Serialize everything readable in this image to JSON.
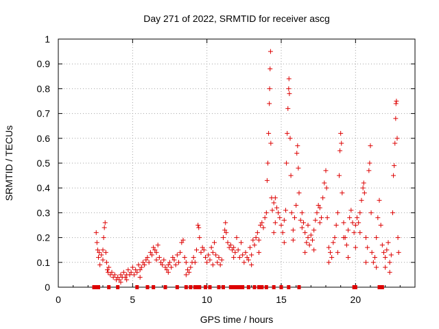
{
  "chart_data": {
    "type": "scatter",
    "title": "Day 271 of 2022, SRMTID for receiver ascg",
    "xlabel": "GPS time / hours",
    "ylabel": "SRMTID / TECUs",
    "xlim": [
      0,
      24
    ],
    "ylim": [
      0,
      1
    ],
    "xticks": [
      0,
      5,
      10,
      15,
      20
    ],
    "xtick_labels": [
      "0",
      "5",
      "10",
      "15",
      "20"
    ],
    "yticks": [
      0,
      0.1,
      0.2,
      0.3,
      0.4,
      0.5,
      0.6,
      0.7,
      0.8,
      0.9,
      1
    ],
    "ytick_labels": [
      "0",
      "0.1",
      "0.2",
      "0.3",
      "0.4",
      "0.5",
      "0.6",
      "0.7",
      "0.8",
      "0.9",
      "1"
    ],
    "grid": true,
    "marker": "+",
    "series_color": "#dd0000",
    "series": [
      {
        "name": "SRMTID",
        "points": [
          [
            2.55,
            0.22
          ],
          [
            2.6,
            0.18
          ],
          [
            2.65,
            0.15
          ],
          [
            2.7,
            0.12
          ],
          [
            2.75,
            0.14
          ],
          [
            2.8,
            0.09
          ],
          [
            2.9,
            0.13
          ],
          [
            3.0,
            0.15
          ],
          [
            3.05,
            0.2
          ],
          [
            3.1,
            0.24
          ],
          [
            3.15,
            0.26
          ],
          [
            3.2,
            0.14
          ],
          [
            3.25,
            0.1
          ],
          [
            3.3,
            0.07
          ],
          [
            3.35,
            0.06
          ],
          [
            3.4,
            0.08
          ],
          [
            3.5,
            0.05
          ],
          [
            3.6,
            0.06
          ],
          [
            3.7,
            0.04
          ],
          [
            3.8,
            0.05
          ],
          [
            3.9,
            0.03
          ],
          [
            4.0,
            0.04
          ],
          [
            4.1,
            0.03
          ],
          [
            4.2,
            0.05
          ],
          [
            4.3,
            0.04
          ],
          [
            4.4,
            0.06
          ],
          [
            4.5,
            0.04
          ],
          [
            4.6,
            0.05
          ],
          [
            4.7,
            0.07
          ],
          [
            4.8,
            0.05
          ],
          [
            4.9,
            0.06
          ],
          [
            5.0,
            0.08
          ],
          [
            5.1,
            0.05
          ],
          [
            5.2,
            0.07
          ],
          [
            5.3,
            0.06
          ],
          [
            5.4,
            0.09
          ],
          [
            5.5,
            0.07
          ],
          [
            5.6,
            0.08
          ],
          [
            5.7,
            0.1
          ],
          [
            5.8,
            0.09
          ],
          [
            5.9,
            0.11
          ],
          [
            6.0,
            0.12
          ],
          [
            6.1,
            0.1
          ],
          [
            6.2,
            0.14
          ],
          [
            6.3,
            0.13
          ],
          [
            6.4,
            0.16
          ],
          [
            6.5,
            0.15
          ],
          [
            6.6,
            0.14
          ],
          [
            6.7,
            0.17
          ],
          [
            6.8,
            0.12
          ],
          [
            6.9,
            0.1
          ],
          [
            7.0,
            0.09
          ],
          [
            7.1,
            0.11
          ],
          [
            7.2,
            0.08
          ],
          [
            7.3,
            0.07
          ],
          [
            7.4,
            0.09
          ],
          [
            7.5,
            0.1
          ],
          [
            7.6,
            0.08
          ],
          [
            7.7,
            0.12
          ],
          [
            7.8,
            0.11
          ],
          [
            7.9,
            0.09
          ],
          [
            8.0,
            0.13
          ],
          [
            8.1,
            0.1
          ],
          [
            8.2,
            0.14
          ],
          [
            8.3,
            0.18
          ],
          [
            8.4,
            0.19
          ],
          [
            8.5,
            0.12
          ],
          [
            8.6,
            0.1
          ],
          [
            8.7,
            0.07
          ],
          [
            8.8,
            0.06
          ],
          [
            8.9,
            0.08
          ],
          [
            9.0,
            0.1
          ],
          [
            9.1,
            0.12
          ],
          [
            9.2,
            0.1
          ],
          [
            9.3,
            0.15
          ],
          [
            9.4,
            0.25
          ],
          [
            9.45,
            0.24
          ],
          [
            9.5,
            0.2
          ],
          [
            9.6,
            0.14
          ],
          [
            9.7,
            0.16
          ],
          [
            9.8,
            0.15
          ],
          [
            9.9,
            0.12
          ],
          [
            10.0,
            0.1
          ],
          [
            10.1,
            0.13
          ],
          [
            10.2,
            0.11
          ],
          [
            10.3,
            0.16
          ],
          [
            10.4,
            0.14
          ],
          [
            10.5,
            0.18
          ],
          [
            10.6,
            0.13
          ],
          [
            10.7,
            0.1
          ],
          [
            10.8,
            0.12
          ],
          [
            10.9,
            0.09
          ],
          [
            11.0,
            0.11
          ],
          [
            11.1,
            0.2
          ],
          [
            11.2,
            0.23
          ],
          [
            11.25,
            0.26
          ],
          [
            11.3,
            0.22
          ],
          [
            11.4,
            0.18
          ],
          [
            11.5,
            0.16
          ],
          [
            11.6,
            0.17
          ],
          [
            11.7,
            0.15
          ],
          [
            11.8,
            0.16
          ],
          [
            11.9,
            0.14
          ],
          [
            12.0,
            0.2
          ],
          [
            12.1,
            0.15
          ],
          [
            12.2,
            0.12
          ],
          [
            12.3,
            0.18
          ],
          [
            12.4,
            0.13
          ],
          [
            12.5,
            0.1
          ],
          [
            12.6,
            0.14
          ],
          [
            12.7,
            0.12
          ],
          [
            12.8,
            0.11
          ],
          [
            12.9,
            0.16
          ],
          [
            13.0,
            0.13
          ],
          [
            13.1,
            0.19
          ],
          [
            13.2,
            0.17
          ],
          [
            13.3,
            0.2
          ],
          [
            13.4,
            0.22
          ],
          [
            13.5,
            0.19
          ],
          [
            13.6,
            0.25
          ],
          [
            13.7,
            0.26
          ],
          [
            13.8,
            0.24
          ],
          [
            13.9,
            0.28
          ],
          [
            14.0,
            0.3
          ],
          [
            14.05,
            0.43
          ],
          [
            14.1,
            0.5
          ],
          [
            14.15,
            0.62
          ],
          [
            14.2,
            0.74
          ],
          [
            14.22,
            0.8
          ],
          [
            14.25,
            0.88
          ],
          [
            14.28,
            0.95
          ],
          [
            14.3,
            0.58
          ],
          [
            14.35,
            0.36
          ],
          [
            14.4,
            0.31
          ],
          [
            14.5,
            0.34
          ],
          [
            14.6,
            0.36
          ],
          [
            14.7,
            0.32
          ],
          [
            14.8,
            0.3
          ],
          [
            14.9,
            0.28
          ],
          [
            15.0,
            0.25
          ],
          [
            15.1,
            0.22
          ],
          [
            15.2,
            0.27
          ],
          [
            15.3,
            0.31
          ],
          [
            15.35,
            0.5
          ],
          [
            15.4,
            0.62
          ],
          [
            15.45,
            0.72
          ],
          [
            15.5,
            0.8
          ],
          [
            15.52,
            0.84
          ],
          [
            15.55,
            0.78
          ],
          [
            15.6,
            0.6
          ],
          [
            15.65,
            0.45
          ],
          [
            15.7,
            0.3
          ],
          [
            15.8,
            0.23
          ],
          [
            15.9,
            0.28
          ],
          [
            16.0,
            0.33
          ],
          [
            16.05,
            0.54
          ],
          [
            16.1,
            0.57
          ],
          [
            16.15,
            0.48
          ],
          [
            16.2,
            0.38
          ],
          [
            16.3,
            0.27
          ],
          [
            16.4,
            0.24
          ],
          [
            16.5,
            0.26
          ],
          [
            16.6,
            0.22
          ],
          [
            16.7,
            0.18
          ],
          [
            16.8,
            0.2
          ],
          [
            16.9,
            0.17
          ],
          [
            17.0,
            0.21
          ],
          [
            17.1,
            0.19
          ],
          [
            17.2,
            0.23
          ],
          [
            17.3,
            0.27
          ],
          [
            17.4,
            0.3
          ],
          [
            17.5,
            0.33
          ],
          [
            17.6,
            0.26
          ],
          [
            17.7,
            0.28
          ],
          [
            17.8,
            0.36
          ],
          [
            17.9,
            0.42
          ],
          [
            18.0,
            0.47
          ],
          [
            18.05,
            0.4
          ],
          [
            18.1,
            0.28
          ],
          [
            18.2,
            0.16
          ],
          [
            18.3,
            0.14
          ],
          [
            18.4,
            0.12
          ],
          [
            18.5,
            0.18
          ],
          [
            18.6,
            0.2
          ],
          [
            18.7,
            0.25
          ],
          [
            18.8,
            0.3
          ],
          [
            18.9,
            0.45
          ],
          [
            18.95,
            0.55
          ],
          [
            19.0,
            0.62
          ],
          [
            19.05,
            0.58
          ],
          [
            19.1,
            0.38
          ],
          [
            19.2,
            0.26
          ],
          [
            19.3,
            0.2
          ],
          [
            19.4,
            0.17
          ],
          [
            19.5,
            0.23
          ],
          [
            19.6,
            0.28
          ],
          [
            19.7,
            0.31
          ],
          [
            19.8,
            0.26
          ],
          [
            19.9,
            0.22
          ],
          [
            20.0,
            0.25
          ],
          [
            20.1,
            0.28
          ],
          [
            20.2,
            0.26
          ],
          [
            20.3,
            0.3
          ],
          [
            20.4,
            0.35
          ],
          [
            20.5,
            0.4
          ],
          [
            20.55,
            0.42
          ],
          [
            20.6,
            0.38
          ],
          [
            20.7,
            0.2
          ],
          [
            20.8,
            0.16
          ],
          [
            20.9,
            0.47
          ],
          [
            20.95,
            0.5
          ],
          [
            21.0,
            0.57
          ],
          [
            21.05,
            0.3
          ],
          [
            21.1,
            0.14
          ],
          [
            21.2,
            0.1
          ],
          [
            21.3,
            0.12
          ],
          [
            21.4,
            0.2
          ],
          [
            21.5,
            0.28
          ],
          [
            21.6,
            0.35
          ],
          [
            21.7,
            0.25
          ],
          [
            21.8,
            0.17
          ],
          [
            21.9,
            0.14
          ],
          [
            22.0,
            0.12
          ],
          [
            22.1,
            0.15
          ],
          [
            22.2,
            0.18
          ],
          [
            22.3,
            0.1
          ],
          [
            22.4,
            0.13
          ],
          [
            22.5,
            0.3
          ],
          [
            22.55,
            0.45
          ],
          [
            22.6,
            0.49
          ],
          [
            22.65,
            0.58
          ],
          [
            22.7,
            0.68
          ],
          [
            22.72,
            0.74
          ],
          [
            22.75,
            0.75
          ],
          [
            22.8,
            0.6
          ],
          [
            22.85,
            0.2
          ],
          [
            22.9,
            0.14
          ],
          [
            3.0,
            0.11
          ],
          [
            4.2,
            0.02
          ],
          [
            4.6,
            0.03
          ],
          [
            5.5,
            0.04
          ],
          [
            6.6,
            0.11
          ],
          [
            7.4,
            0.06
          ],
          [
            8.6,
            0.05
          ],
          [
            10.4,
            0.09
          ],
          [
            11.8,
            0.12
          ],
          [
            13.0,
            0.09
          ],
          [
            13.5,
            0.14
          ],
          [
            14.6,
            0.26
          ],
          [
            15.2,
            0.18
          ],
          [
            16.4,
            0.3
          ],
          [
            16.6,
            0.14
          ],
          [
            17.2,
            0.15
          ],
          [
            18.2,
            0.1
          ],
          [
            18.8,
            0.14
          ],
          [
            19.5,
            0.12
          ],
          [
            20.3,
            0.22
          ],
          [
            20.7,
            0.1
          ],
          [
            21.4,
            0.08
          ],
          [
            22.0,
            0.08
          ],
          [
            22.3,
            0.06
          ],
          [
            14.5,
            0.22
          ],
          [
            15.8,
            0.19
          ],
          [
            16.8,
            0.25
          ],
          [
            17.6,
            0.32
          ],
          [
            19.2,
            0.2
          ],
          [
            20.0,
            0.16
          ]
        ],
        "zero_points": [
          2.4,
          2.5,
          2.6,
          2.7,
          3.4,
          4.0,
          5.3,
          6.0,
          6.4,
          7.2,
          8.0,
          8.6,
          8.9,
          9.2,
          9.3,
          9.5,
          9.9,
          10.2,
          10.8,
          11.1,
          11.6,
          11.8,
          12.0,
          12.2,
          12.4,
          12.8,
          13.2,
          13.5,
          13.7,
          14.0,
          14.5,
          15.0,
          15.5,
          16.2,
          19.9,
          20.0,
          21.6,
          21.8
        ]
      }
    ]
  }
}
